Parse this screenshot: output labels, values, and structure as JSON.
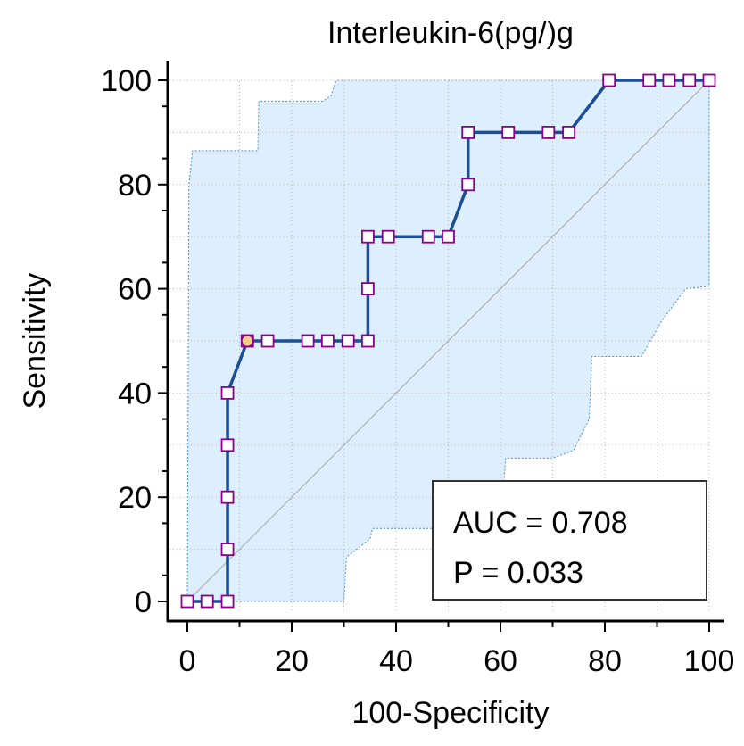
{
  "chart_data": {
    "type": "line",
    "title": "Interleukin-6(pg/)g",
    "xlabel": "100-Specificity",
    "ylabel": "Sensitivity",
    "xlim": [
      0,
      100
    ],
    "ylim": [
      0,
      100
    ],
    "xticks": [
      "0",
      "20",
      "40",
      "60",
      "80",
      "100"
    ],
    "yticks": [
      "0",
      "20",
      "40",
      "60",
      "80",
      "100"
    ],
    "grid": true,
    "diagonal_reference": true,
    "series": [
      {
        "points": [
          [
            0,
            0
          ],
          [
            3.8,
            0
          ],
          [
            7.7,
            0
          ],
          [
            7.7,
            10
          ],
          [
            7.7,
            20
          ],
          [
            7.7,
            30
          ],
          [
            7.7,
            40
          ],
          [
            11.5,
            50
          ],
          [
            15.4,
            50
          ],
          [
            23.1,
            50
          ],
          [
            26.9,
            50
          ],
          [
            30.8,
            50
          ],
          [
            34.6,
            50
          ],
          [
            34.6,
            60
          ],
          [
            34.6,
            70
          ],
          [
            38.5,
            70
          ],
          [
            46.2,
            70
          ],
          [
            50,
            70
          ],
          [
            53.8,
            80
          ],
          [
            53.8,
            90
          ],
          [
            61.5,
            90
          ],
          [
            69.2,
            90
          ],
          [
            73.1,
            90
          ],
          [
            80.8,
            100
          ],
          [
            88.5,
            100
          ],
          [
            92.3,
            100
          ],
          [
            96.2,
            100
          ],
          [
            100,
            100
          ]
        ],
        "highlight_point": [
          11.5,
          50
        ]
      }
    ],
    "confidence_band_upper": [
      [
        0,
        0
      ],
      [
        0.3,
        80
      ],
      [
        1,
        86.5
      ],
      [
        13.5,
        86.5
      ],
      [
        13.7,
        96
      ],
      [
        26,
        96
      ],
      [
        27.5,
        97
      ],
      [
        28.5,
        100
      ],
      [
        100,
        100
      ]
    ],
    "confidence_band_lower": [
      [
        0,
        0
      ],
      [
        30,
        0
      ],
      [
        30.5,
        8.5
      ],
      [
        35,
        12
      ],
      [
        35.5,
        14
      ],
      [
        52,
        14
      ],
      [
        52.5,
        21
      ],
      [
        60.5,
        21
      ],
      [
        61,
        27.5
      ],
      [
        70,
        27.5
      ],
      [
        74,
        29
      ],
      [
        77,
        35
      ],
      [
        77.5,
        47
      ],
      [
        87,
        47
      ],
      [
        91,
        54
      ],
      [
        95.5,
        60
      ],
      [
        100,
        60.5
      ],
      [
        100,
        100
      ]
    ],
    "annotations": {
      "auc": "AUC = 0.708",
      "p": "P = 0.033"
    },
    "colors": {
      "line": "#1b4e92",
      "marker_edge": "#8b008b",
      "marker_fill": "#ffffff",
      "highlight_fill": "#f4c98a",
      "band_fill": "#ddeeff",
      "band_edge": "#4a8fd0",
      "grid": "#b9b9b9",
      "diagonal": "#a5a5a5"
    }
  }
}
